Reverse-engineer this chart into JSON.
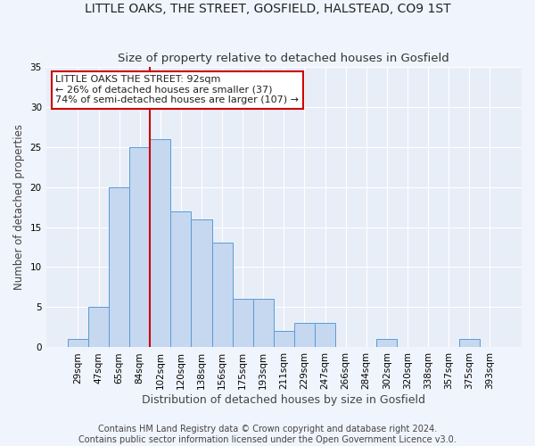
{
  "title": "LITTLE OAKS, THE STREET, GOSFIELD, HALSTEAD, CO9 1ST",
  "subtitle": "Size of property relative to detached houses in Gosfield",
  "xlabel": "Distribution of detached houses by size in Gosfield",
  "ylabel": "Number of detached properties",
  "categories": [
    "29sqm",
    "47sqm",
    "65sqm",
    "84sqm",
    "102sqm",
    "120sqm",
    "138sqm",
    "156sqm",
    "175sqm",
    "193sqm",
    "211sqm",
    "229sqm",
    "247sqm",
    "266sqm",
    "284sqm",
    "302sqm",
    "320sqm",
    "338sqm",
    "357sqm",
    "375sqm",
    "393sqm"
  ],
  "values": [
    1,
    5,
    20,
    25,
    26,
    17,
    16,
    13,
    6,
    6,
    2,
    3,
    3,
    0,
    0,
    1,
    0,
    0,
    0,
    1,
    0
  ],
  "bar_color": "#c5d8f0",
  "bar_edge_color": "#5b9bd5",
  "background_color": "#e8eef8",
  "fig_background_color": "#f0f4fc",
  "grid_color": "#ffffff",
  "annotation_text": "LITTLE OAKS THE STREET: 92sqm\n← 26% of detached houses are smaller (37)\n74% of semi-detached houses are larger (107) →",
  "vline_color": "#cc0000",
  "annotation_box_color": "#ffffff",
  "annotation_box_edge": "#cc0000",
  "ylim": [
    0,
    35
  ],
  "yticks": [
    0,
    5,
    10,
    15,
    20,
    25,
    30,
    35
  ],
  "footer_text": "Contains HM Land Registry data © Crown copyright and database right 2024.\nContains public sector information licensed under the Open Government Licence v3.0.",
  "title_fontsize": 10,
  "subtitle_fontsize": 9.5,
  "xlabel_fontsize": 9,
  "ylabel_fontsize": 8.5,
  "tick_fontsize": 7.5,
  "annotation_fontsize": 8,
  "footer_fontsize": 7
}
